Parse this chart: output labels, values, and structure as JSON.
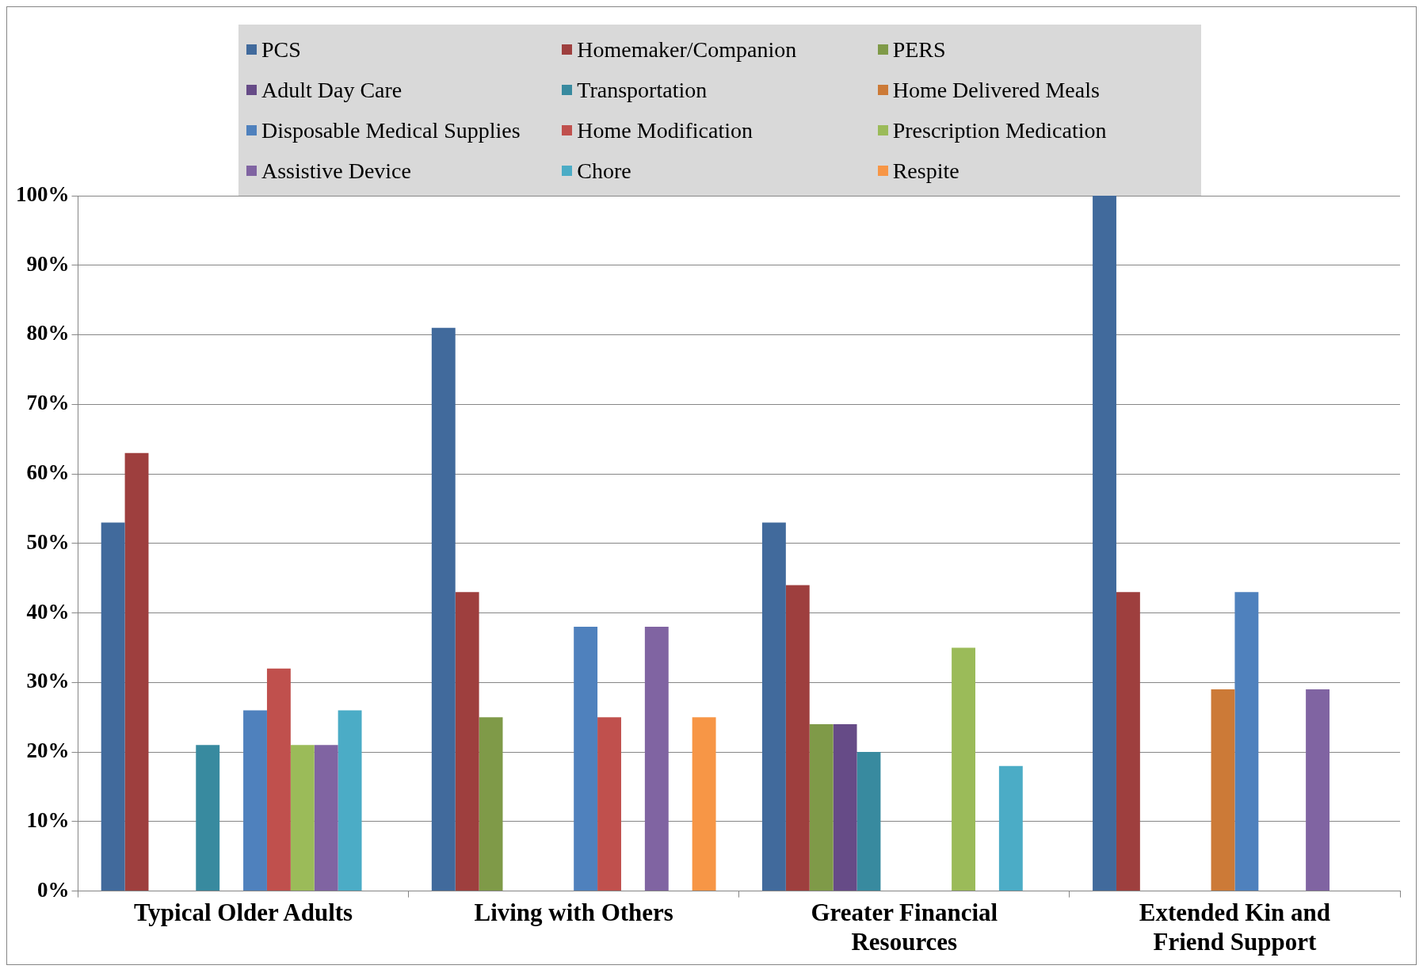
{
  "chart_data": {
    "type": "bar",
    "categories": [
      "Typical Older Adults",
      "Living with Others",
      "Greater Financial Resources",
      "Extended Kin and Friend Support"
    ],
    "series": [
      {
        "name": "PCS",
        "color": "#416a9c",
        "values": [
          53,
          81,
          53,
          100
        ]
      },
      {
        "name": "Homemaker/Companion",
        "color": "#9e3f3e",
        "values": [
          63,
          43,
          44,
          43
        ]
      },
      {
        "name": "PERS",
        "color": "#7f9a48",
        "values": [
          0,
          25,
          24,
          0
        ]
      },
      {
        "name": "Adult Day Care",
        "color": "#664b87",
        "values": [
          0,
          0,
          24,
          0
        ]
      },
      {
        "name": "Transportation",
        "color": "#388a9f",
        "values": [
          21,
          0,
          20,
          0
        ]
      },
      {
        "name": "Home Delivered Meals",
        "color": "#cc7a37",
        "values": [
          0,
          0,
          0,
          29
        ]
      },
      {
        "name": "Disposable Medical Supplies",
        "color": "#4f81bd",
        "values": [
          26,
          38,
          0,
          43
        ]
      },
      {
        "name": "Home Modification",
        "color": "#c0504d",
        "values": [
          32,
          25,
          0,
          0
        ]
      },
      {
        "name": "Prescription Medication",
        "color": "#9bbb59",
        "values": [
          21,
          0,
          35,
          0
        ]
      },
      {
        "name": "Assistive Device",
        "color": "#8064a2",
        "values": [
          21,
          38,
          0,
          29
        ]
      },
      {
        "name": "Chore",
        "color": "#4bacc6",
        "values": [
          26,
          0,
          18,
          0
        ]
      },
      {
        "name": "Respite",
        "color": "#f79646",
        "values": [
          0,
          25,
          0,
          0
        ]
      }
    ],
    "ylim": [
      0,
      100
    ],
    "yticks": [
      {
        "value": 0,
        "label": "0%"
      },
      {
        "value": 10,
        "label": "10%"
      },
      {
        "value": 20,
        "label": "20%"
      },
      {
        "value": 30,
        "label": "30%"
      },
      {
        "value": 40,
        "label": "40%"
      },
      {
        "value": 50,
        "label": "50%"
      },
      {
        "value": 60,
        "label": "60%"
      },
      {
        "value": 70,
        "label": "70%"
      },
      {
        "value": 80,
        "label": "80%"
      },
      {
        "value": 90,
        "label": "90%"
      },
      {
        "value": 100,
        "label": "100%"
      }
    ],
    "grid": "y",
    "legend": "top"
  }
}
